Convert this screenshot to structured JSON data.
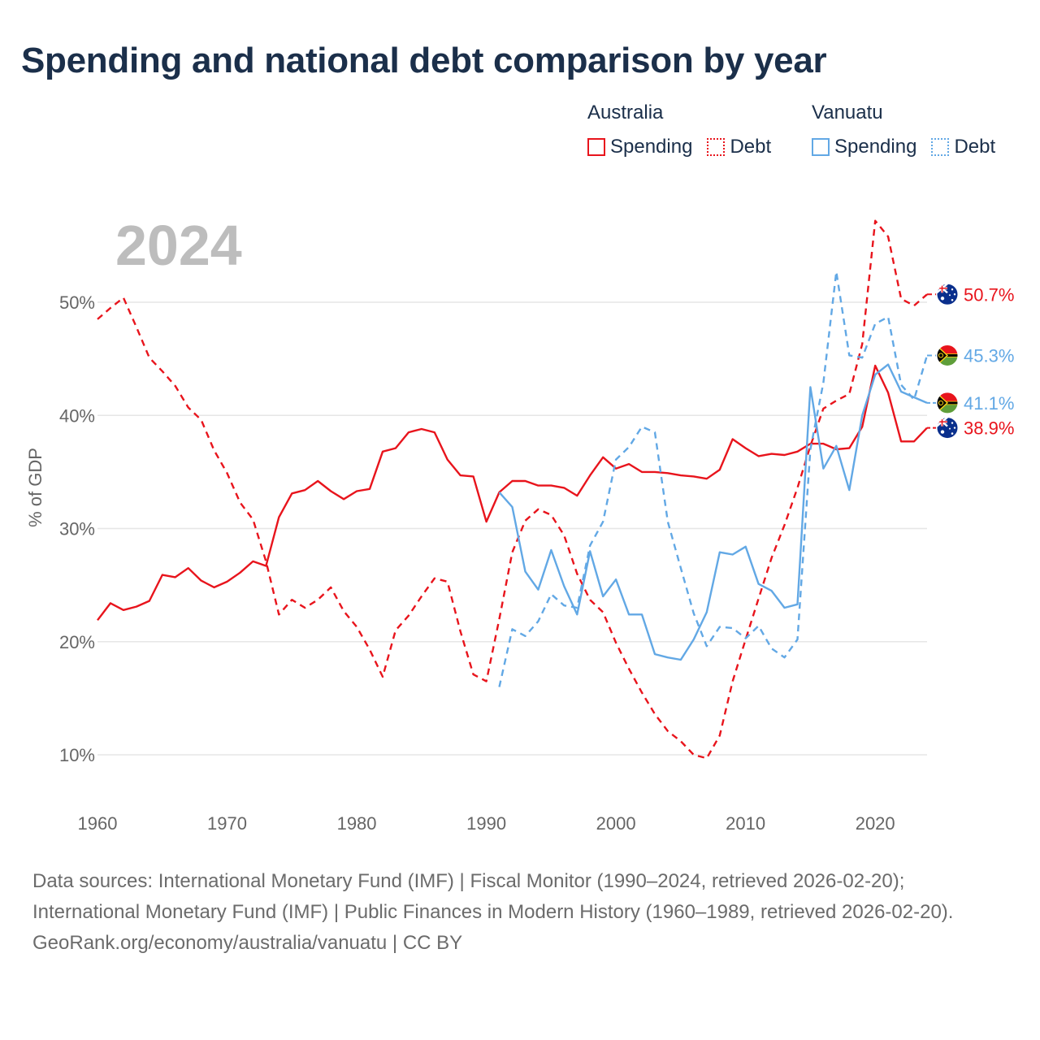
{
  "chart_data": {
    "type": "line",
    "title": "Spending and national debt comparison by year",
    "year_label": "2024",
    "ylabel": "% of GDP",
    "xlabel": "",
    "xlim": [
      1960,
      2024
    ],
    "ylim": [
      10,
      56
    ],
    "y_ticks": [
      "10%",
      "20%",
      "30%",
      "40%",
      "50%"
    ],
    "x_ticks": [
      "1960",
      "1970",
      "1980",
      "1990",
      "2000",
      "2010",
      "2020"
    ],
    "colors": {
      "australia": "#e8141c",
      "vanuatu": "#62a8e5"
    },
    "legend": {
      "groups": [
        {
          "country": "Australia",
          "items": [
            "Spending",
            "Debt"
          ]
        },
        {
          "country": "Vanuatu",
          "items": [
            "Spending",
            "Debt"
          ]
        }
      ]
    },
    "series": [
      {
        "name": "Australia Spending",
        "country": "australia",
        "style": "solid",
        "start": 1960,
        "values": [
          21.9,
          23.4,
          22.8,
          23.1,
          23.6,
          25.9,
          25.7,
          26.5,
          25.4,
          24.8,
          25.3,
          26.1,
          27.1,
          26.7,
          31.0,
          33.1,
          33.4,
          34.2,
          33.3,
          32.6,
          33.3,
          33.5,
          36.8,
          37.1,
          38.5,
          38.8,
          38.5,
          36.1,
          34.7,
          34.6,
          30.6,
          33.2,
          34.2,
          34.2,
          33.8,
          33.8,
          33.6,
          32.9,
          34.7,
          36.3,
          35.3,
          35.7,
          35.0,
          35.0,
          34.9,
          34.7,
          34.6,
          34.4,
          35.2,
          37.9,
          37.1,
          36.4,
          36.6,
          36.5,
          36.8,
          37.5,
          37.5,
          37.0,
          37.1,
          39.0,
          44.4,
          42.0,
          37.7,
          37.7,
          38.9
        ],
        "end_label": "38.9%"
      },
      {
        "name": "Australia Debt",
        "country": "australia",
        "style": "dashed",
        "start": 1960,
        "values": [
          48.5,
          49.5,
          50.4,
          47.8,
          45.1,
          43.9,
          42.6,
          40.7,
          39.6,
          36.9,
          34.9,
          32.3,
          30.8,
          27.1,
          22.4,
          23.7,
          23.0,
          23.7,
          24.8,
          22.7,
          21.3,
          19.3,
          16.9,
          21.0,
          22.3,
          24.0,
          25.6,
          25.3,
          20.9,
          17.1,
          16.5,
          22.0,
          27.9,
          30.7,
          31.7,
          31.2,
          29.4,
          26.0,
          23.7,
          22.6,
          19.9,
          17.6,
          15.5,
          13.6,
          12.1,
          11.2,
          10.0,
          9.7,
          11.7,
          16.5,
          20.2,
          23.8,
          27.4,
          30.3,
          33.6,
          37.3,
          40.6,
          41.3,
          41.9,
          46.3,
          57.2,
          55.8,
          50.3,
          49.7,
          50.7
        ],
        "end_label": "50.7%"
      },
      {
        "name": "Vanuatu Spending",
        "country": "vanuatu",
        "style": "solid",
        "start": 1991,
        "values": [
          33.2,
          31.9,
          26.2,
          24.6,
          28.1,
          24.9,
          22.4,
          28.0,
          24.0,
          25.5,
          22.4,
          22.4,
          18.9,
          18.6,
          18.4,
          20.2,
          22.6,
          27.9,
          27.7,
          28.4,
          25.1,
          24.5,
          23.0,
          23.3,
          42.5,
          35.3,
          37.3,
          33.4,
          40.0,
          43.6,
          44.5,
          42.1,
          41.6,
          41.1
        ],
        "end_label": "41.1%"
      },
      {
        "name": "Vanuatu Debt",
        "country": "vanuatu",
        "style": "dashed",
        "start": 1991,
        "values": [
          16.0,
          21.1,
          20.5,
          21.8,
          24.2,
          23.2,
          23.0,
          28.5,
          30.6,
          36.1,
          37.2,
          39.0,
          38.5,
          30.6,
          26.5,
          22.5,
          19.6,
          21.3,
          21.2,
          20.3,
          21.4,
          19.4,
          18.6,
          20.2,
          37.0,
          42.9,
          52.7,
          45.3,
          45.1,
          48.1,
          48.7,
          42.7,
          41.4,
          45.3
        ],
        "end_label": "45.3%"
      }
    ]
  },
  "footer": {
    "sources": "Data sources: International Monetary Fund (IMF) | Fiscal Monitor (1990–2024, retrieved 2026-02-20); International Monetary Fund (IMF) | Public Finances in Modern History (1960–1989, retrieved 2026-02-20).",
    "credit": "GeoRank.org/economy/australia/vanuatu | CC BY"
  }
}
